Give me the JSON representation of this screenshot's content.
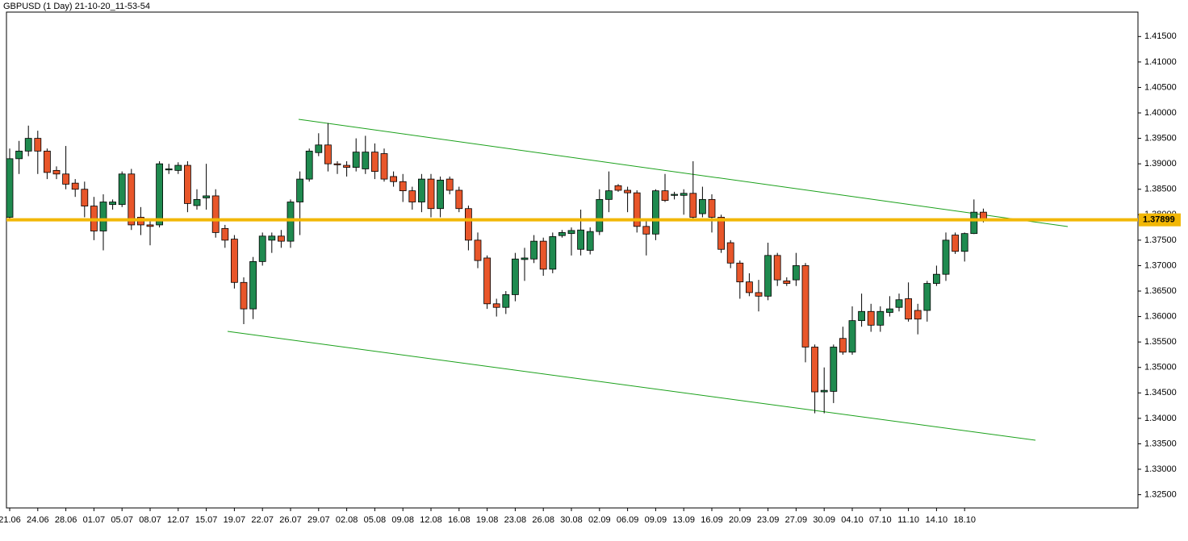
{
  "chart_data": {
    "type": "candlestick",
    "title": "GBPUSD (1 Day) 21-10-20_11-53-54",
    "categories": [
      "21.06",
      null,
      null,
      "24.06",
      null,
      null,
      "28.06",
      null,
      null,
      "01.07",
      null,
      null,
      "05.07",
      null,
      null,
      "08.07",
      null,
      null,
      "12.07",
      null,
      null,
      "15.07",
      null,
      null,
      "19.07",
      null,
      null,
      "22.07",
      null,
      null,
      "26.07",
      null,
      null,
      "29.07",
      null,
      null,
      "02.08",
      null,
      null,
      "05.08",
      null,
      null,
      "09.08",
      null,
      null,
      "12.08",
      null,
      null,
      "16.08",
      null,
      null,
      "19.08",
      null,
      null,
      "23.08",
      null,
      null,
      "26.08",
      null,
      null,
      "30.08",
      null,
      null,
      "02.09",
      null,
      null,
      "06.09",
      null,
      null,
      "09.09",
      null,
      null,
      "13.09",
      null,
      null,
      "16.09",
      null,
      null,
      "20.09",
      null,
      null,
      "23.09",
      null,
      null,
      "27.09",
      null,
      null,
      "30.09",
      null,
      null,
      "04.10",
      null,
      null,
      "07.10",
      null,
      null,
      "11.10",
      null,
      null,
      "14.10",
      null,
      null,
      "18.10",
      null,
      null
    ],
    "open": [
      1.3795,
      1.391,
      1.3925,
      1.395,
      1.3925,
      1.3887,
      1.388,
      1.3862,
      1.385,
      1.3817,
      1.3768,
      1.382,
      1.382,
      1.388,
      1.3795,
      1.378,
      1.378,
      1.3888,
      1.3887,
      1.3897,
      1.3818,
      1.3833,
      1.3837,
      1.3773,
      1.3752,
      1.3667,
      1.3615,
      1.3708,
      1.375,
      1.3758,
      1.3748,
      1.3825,
      1.387,
      1.3922,
      1.3937,
      1.39,
      1.3897,
      1.3893,
      1.389,
      1.3923,
      1.392,
      1.3875,
      1.3865,
      1.3847,
      1.3825,
      1.387,
      1.3812,
      1.387,
      1.3848,
      1.3812,
      1.375,
      1.3715,
      1.3625,
      1.3618,
      1.3643,
      1.3712,
      1.3713,
      1.3748,
      1.3693,
      1.3759,
      1.3763,
      1.3732,
      1.373,
      1.3767,
      1.383,
      1.3857,
      1.3848,
      1.3843,
      1.3777,
      1.3762,
      1.3847,
      1.3838,
      1.3838,
      1.3842,
      1.3802,
      1.383,
      1.3795,
      1.3745,
      1.3705,
      1.3668,
      1.3647,
      1.364,
      1.372,
      1.367,
      1.3672,
      1.37,
      1.354,
      1.3452,
      1.3453,
      1.3557,
      1.353,
      1.3592,
      1.361,
      1.3583,
      1.3608,
      1.3618,
      1.3635,
      1.3612,
      1.3612,
      1.3665,
      1.3683,
      1.376,
      1.3728,
      1.3763,
      1.3805
    ],
    "high": [
      1.393,
      1.3945,
      1.3975,
      1.3965,
      1.393,
      1.3895,
      1.3935,
      1.387,
      1.3865,
      1.3835,
      1.384,
      1.383,
      1.3885,
      1.389,
      1.3815,
      1.379,
      1.3905,
      1.39,
      1.3903,
      1.3905,
      1.385,
      1.39,
      1.385,
      1.378,
      1.376,
      1.3677,
      1.3717,
      1.3765,
      1.3765,
      1.377,
      1.383,
      1.3885,
      1.393,
      1.396,
      1.398,
      1.3905,
      1.3905,
      1.395,
      1.3955,
      1.394,
      1.393,
      1.3885,
      1.388,
      1.3855,
      1.388,
      1.388,
      1.3875,
      1.3875,
      1.3855,
      1.3818,
      1.3765,
      1.372,
      1.3635,
      1.365,
      1.3725,
      1.3735,
      1.376,
      1.3755,
      1.3765,
      1.377,
      1.3775,
      1.381,
      1.3775,
      1.385,
      1.3885,
      1.386,
      1.3855,
      1.3848,
      1.379,
      1.385,
      1.388,
      1.3845,
      1.385,
      1.3905,
      1.3855,
      1.384,
      1.38,
      1.375,
      1.371,
      1.3685,
      1.3672,
      1.3745,
      1.3725,
      1.3677,
      1.3725,
      1.3705,
      1.3545,
      1.35,
      1.3545,
      1.358,
      1.362,
      1.3645,
      1.3625,
      1.362,
      1.364,
      1.3645,
      1.3667,
      1.3625,
      1.367,
      1.37,
      1.3765,
      1.3765,
      1.3765,
      1.383,
      1.3812
    ],
    "low": [
      1.379,
      1.388,
      1.3915,
      1.388,
      1.387,
      1.387,
      1.385,
      1.3835,
      1.3795,
      1.375,
      1.373,
      1.381,
      1.3815,
      1.377,
      1.376,
      1.374,
      1.3775,
      1.388,
      1.388,
      1.3805,
      1.381,
      1.381,
      1.3755,
      1.3735,
      1.3655,
      1.3585,
      1.3595,
      1.37,
      1.3725,
      1.3735,
      1.3735,
      1.376,
      1.3865,
      1.3915,
      1.3885,
      1.388,
      1.3875,
      1.3885,
      1.388,
      1.387,
      1.3865,
      1.3855,
      1.3825,
      1.381,
      1.3805,
      1.3795,
      1.3795,
      1.384,
      1.3805,
      1.373,
      1.3695,
      1.3615,
      1.36,
      1.3605,
      1.363,
      1.367,
      1.3705,
      1.368,
      1.3685,
      1.3755,
      1.372,
      1.372,
      1.3722,
      1.376,
      1.3805,
      1.3845,
      1.3805,
      1.3765,
      1.372,
      1.375,
      1.3825,
      1.383,
      1.38,
      1.3787,
      1.3795,
      1.3765,
      1.3725,
      1.3695,
      1.3635,
      1.364,
      1.361,
      1.3632,
      1.366,
      1.366,
      1.366,
      1.351,
      1.341,
      1.341,
      1.343,
      1.3525,
      1.3525,
      1.358,
      1.357,
      1.357,
      1.36,
      1.361,
      1.359,
      1.3565,
      1.359,
      1.366,
      1.367,
      1.3723,
      1.3708,
      1.3762,
      1.3785
    ],
    "close": [
      1.391,
      1.3925,
      1.395,
      1.3925,
      1.3883,
      1.388,
      1.386,
      1.385,
      1.3817,
      1.3768,
      1.3825,
      1.3825,
      1.388,
      1.378,
      1.378,
      1.3777,
      1.39,
      1.389,
      1.3897,
      1.3822,
      1.383,
      1.3837,
      1.3765,
      1.375,
      1.3667,
      1.3615,
      1.3708,
      1.3758,
      1.3758,
      1.3748,
      1.3825,
      1.387,
      1.3925,
      1.3937,
      1.39,
      1.3898,
      1.3893,
      1.3923,
      1.3923,
      1.3885,
      1.387,
      1.3865,
      1.3847,
      1.3825,
      1.387,
      1.3812,
      1.3868,
      1.3848,
      1.3812,
      1.375,
      1.371,
      1.3625,
      1.3618,
      1.3643,
      1.3713,
      1.3715,
      1.3748,
      1.3693,
      1.3757,
      1.3765,
      1.3769,
      1.377,
      1.3767,
      1.383,
      1.3847,
      1.3848,
      1.3843,
      1.3777,
      1.3762,
      1.3847,
      1.3828,
      1.384,
      1.3842,
      1.3795,
      1.383,
      1.3795,
      1.3732,
      1.3705,
      1.3668,
      1.3647,
      1.364,
      1.372,
      1.3672,
      1.3665,
      1.37,
      1.354,
      1.3452,
      1.3455,
      1.354,
      1.353,
      1.3592,
      1.361,
      1.3583,
      1.361,
      1.3615,
      1.3633,
      1.3595,
      1.3595,
      1.3665,
      1.3683,
      1.375,
      1.3728,
      1.3763,
      1.3805,
      1.379
    ],
    "up_color": "#1f8a4f",
    "down_color": "#e8562a",
    "current_price": 1.37899,
    "current_price_color": "#f2b705",
    "ylim": [
      1.3224,
      1.4198
    ],
    "yticks": [
      {
        "value": 1.325,
        "label": "1.32500"
      },
      {
        "value": 1.33,
        "label": "1.33000"
      },
      {
        "value": 1.335,
        "label": "1.33500"
      },
      {
        "value": 1.34,
        "label": "1.34000"
      },
      {
        "value": 1.345,
        "label": "1.34500"
      },
      {
        "value": 1.35,
        "label": "1.35000"
      },
      {
        "value": 1.355,
        "label": "1.35500"
      },
      {
        "value": 1.36,
        "label": "1.36000"
      },
      {
        "value": 1.365,
        "label": "1.36500"
      },
      {
        "value": 1.37,
        "label": "1.37000"
      },
      {
        "value": 1.375,
        "label": "1.37500"
      },
      {
        "value": 1.38,
        "label": "1.38000"
      },
      {
        "value": 1.385,
        "label": "1.38500"
      },
      {
        "value": 1.39,
        "label": "1.39000"
      },
      {
        "value": 1.395,
        "label": "1.39500"
      },
      {
        "value": 1.4,
        "label": "1.40000"
      },
      {
        "value": 1.405,
        "label": "1.40500"
      },
      {
        "value": 1.41,
        "label": "1.41000"
      },
      {
        "value": 1.415,
        "label": "1.41500"
      }
    ],
    "grid": false
  }
}
